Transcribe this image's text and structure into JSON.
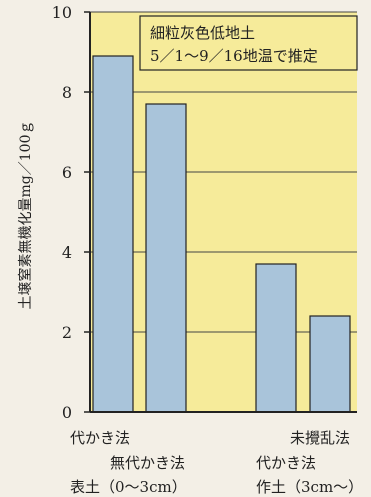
{
  "chart_data": {
    "type": "bar",
    "title": "",
    "xlabel": "",
    "ylabel": "土壌窒素無機化量mg／100ｇ",
    "ylim": [
      0,
      10
    ],
    "yticks": [
      0,
      2,
      4,
      6,
      8,
      10
    ],
    "grid": true,
    "legend": {
      "lines": [
        "細粒灰色低地土",
        "5／1～9／16地温で推定"
      ],
      "placement": "top-right"
    },
    "categories": [
      "表土（0～3cm） 代かき法",
      "表土（0～3cm） 無代かき法",
      "作土（3cm～） 代かき法",
      "作土（3cm～） 未攪乱法"
    ],
    "values": [
      8.9,
      7.7,
      3.7,
      2.4
    ],
    "category_labels": [
      "代かき法",
      "無代かき法",
      "代かき法",
      "未攪乱法"
    ],
    "group_labels": [
      "表土（0～3cm）",
      "作土（3cm～）"
    ],
    "colors": {
      "plot_bg": "#f6eb9a",
      "bar_fill": "#a9c4da",
      "bar_stroke": "#222222",
      "axis": "#222222",
      "grid": "#444444",
      "page_bg": "#f3efe6"
    }
  }
}
